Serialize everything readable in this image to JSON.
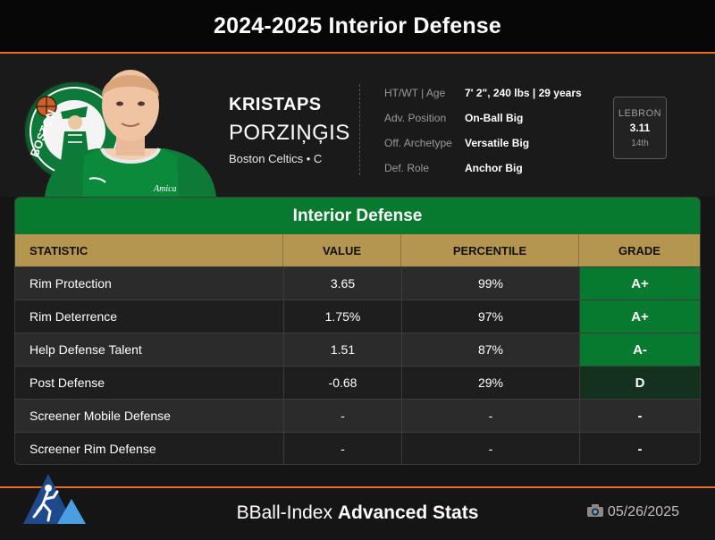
{
  "header": {
    "title": "2024-2025 Interior Defense"
  },
  "player": {
    "first_name": "KRISTAPS",
    "last_name": "PORZIŅĢIS",
    "team_line": "Boston Celtics • C",
    "logo_text": "BOSTON",
    "jersey_text": "Amica"
  },
  "info": [
    {
      "label": "HT/WT | Age",
      "value": "7' 2\", 240 lbs | 29 years"
    },
    {
      "label": "Adv. Position",
      "value": "On-Ball Big"
    },
    {
      "label": "Off. Archetype",
      "value": "Versatile Big"
    },
    {
      "label": "Def. Role",
      "value": "Anchor Big"
    }
  ],
  "lebron": {
    "label": "LEBRON",
    "value": "3.11",
    "rank": "14th"
  },
  "table": {
    "title": "Interior Defense",
    "headers": [
      "STATISTIC",
      "VALUE",
      "PERCENTILE",
      "GRADE"
    ],
    "rows": [
      {
        "stat": "Rim Protection",
        "value": "3.65",
        "percentile": "99%",
        "grade": "A+",
        "grade_color": "#087a2f"
      },
      {
        "stat": "Rim Deterrence",
        "value": "1.75%",
        "percentile": "97%",
        "grade": "A+",
        "grade_color": "#087a2f"
      },
      {
        "stat": "Help Defense Talent",
        "value": "1.51",
        "percentile": "87%",
        "grade": "A-",
        "grade_color": "#087a2f"
      },
      {
        "stat": "Post Defense",
        "value": "-0.68",
        "percentile": "29%",
        "grade": "D",
        "grade_color": "#13311c"
      },
      {
        "stat": "Screener Mobile Defense",
        "value": "-",
        "percentile": "-",
        "grade": "-",
        "grade_color": ""
      },
      {
        "stat": "Screener Rim Defense",
        "value": "-",
        "percentile": "-",
        "grade": "-",
        "grade_color": ""
      }
    ]
  },
  "footer": {
    "brand_light": "BBall-Index",
    "brand_bold": "Advanced Stats",
    "date": "05/26/2025"
  },
  "colors": {
    "accent": "#e86a2a",
    "title_green": "#087a2f",
    "header_gold": "#b49650"
  }
}
